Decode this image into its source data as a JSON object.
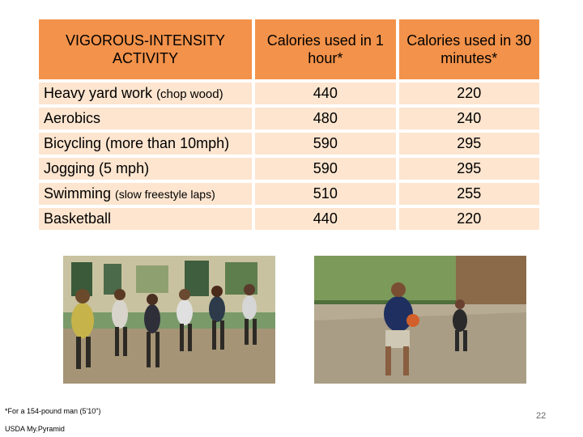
{
  "table": {
    "headers": {
      "activity": "VIGOROUS-INTENSITY ACTIVITY",
      "hour": "Calories used in 1 hour*",
      "half": "Calories used in 30 minutes*"
    },
    "rows": [
      {
        "activity": "Heavy yard work",
        "note": "(chop wood)",
        "hour": "440",
        "half": "220"
      },
      {
        "activity": "Aerobics",
        "note": "",
        "hour": "480",
        "half": "240"
      },
      {
        "activity": "Bicycling (more than 10mph)",
        "note": "",
        "hour": "590",
        "half": "295"
      },
      {
        "activity": "Jogging (5 mph)",
        "note": "",
        "hour": "590",
        "half": "295"
      },
      {
        "activity": "Swimming",
        "note": "(slow freestyle laps)",
        "hour": "510",
        "half": "255"
      },
      {
        "activity": "Basketball",
        "note": "",
        "hour": "440",
        "half": "220"
      }
    ]
  },
  "footnote": "*For a 154-pound man (5'10\")",
  "source": "USDA My.Pyramid",
  "page_number": "22"
}
